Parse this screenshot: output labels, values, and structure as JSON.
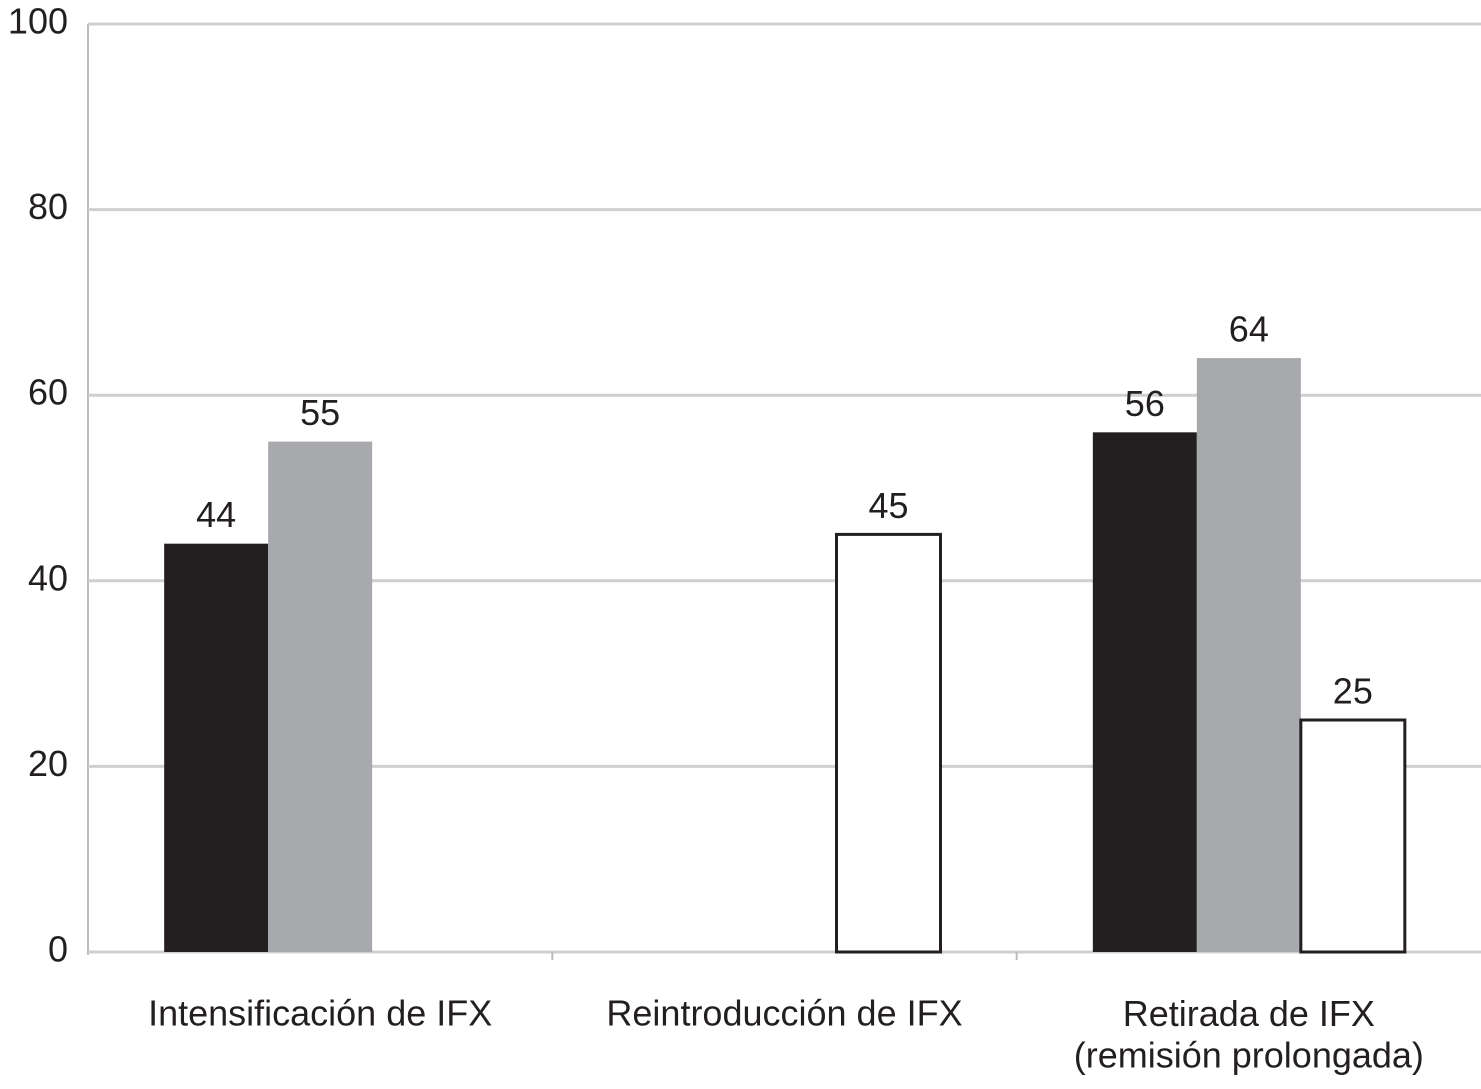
{
  "chart_data": {
    "type": "bar",
    "categories": [
      "Intensificación de IFX",
      "Reintroducción de IFX",
      "Retirada de IFX\n(remisión prolongada)"
    ],
    "series": [
      {
        "color": "#231f20",
        "values": [
          44,
          null,
          56
        ]
      },
      {
        "color": "#a7a9ac",
        "values": [
          55,
          null,
          64
        ]
      },
      {
        "color": "#ffffff",
        "values": [
          null,
          45,
          25
        ]
      }
    ],
    "ylim": [
      0,
      100
    ],
    "yticks": [
      0,
      20,
      40,
      60,
      80,
      100
    ],
    "grid": true
  }
}
